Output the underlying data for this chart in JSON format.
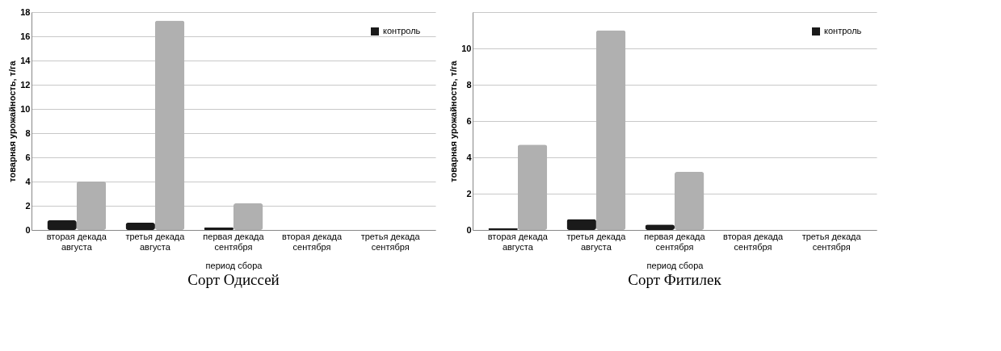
{
  "chart_data": [
    {
      "type": "bar",
      "title": "Сорт Одиссей",
      "xlabel": "период сбора",
      "ylabel": "товарная урожайность, т/га",
      "categories": [
        "вторая декада августа",
        "третья декада августа",
        "первая декада сентября",
        "вторая декада сентября",
        "третья декада сентября"
      ],
      "series": [
        {
          "name": "контроль",
          "color": "#1a1a1a",
          "values": [
            0.8,
            0.6,
            0.2,
            0,
            0
          ]
        },
        {
          "color": "#b0b0b0",
          "values": [
            4.0,
            17.3,
            2.2,
            0,
            0
          ]
        }
      ],
      "ylim": [
        0,
        18
      ],
      "yticks": [
        0,
        2,
        4,
        6,
        8,
        10,
        12,
        14,
        16,
        18
      ],
      "grid": "y",
      "legend": "top right"
    },
    {
      "type": "bar",
      "title": "Сорт Фитилек",
      "xlabel": "период сбора",
      "ylabel": "товарная урожайность, т/га",
      "categories": [
        "вторая декада августа",
        "третья декада августа",
        "первая декада сентября",
        "вторая декада сентября",
        "третья декада сентября"
      ],
      "series": [
        {
          "name": "контроль",
          "color": "#1a1a1a",
          "values": [
            0.1,
            0.6,
            0.3,
            0,
            0
          ]
        },
        {
          "color": "#b0b0b0",
          "values": [
            4.7,
            11.0,
            3.2,
            0,
            0
          ]
        }
      ],
      "ylim": [
        0,
        12
      ],
      "yticks": [
        0,
        2,
        4,
        6,
        8,
        10,
        {
          "value": 12,
          "label": null
        }
      ],
      "grid": "y",
      "legend": "top right"
    }
  ]
}
